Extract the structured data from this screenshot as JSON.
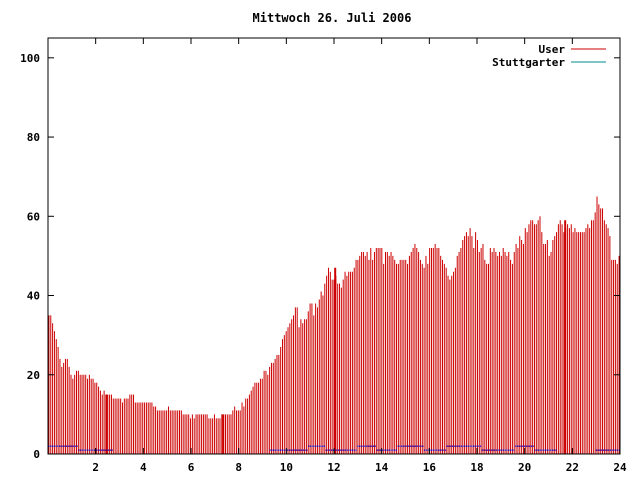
{
  "chart_data": {
    "type": "bar",
    "title": "Mittwoch 26. Juli 2006",
    "xlabel": "",
    "ylabel": "",
    "xlim": [
      0,
      24
    ],
    "ylim": [
      0,
      105
    ],
    "x_ticks": [
      "2",
      "4",
      "6",
      "8",
      "10",
      "12",
      "14",
      "16",
      "18",
      "20",
      "22",
      "24"
    ],
    "y_ticks": [
      "0",
      "20",
      "40",
      "60",
      "80",
      "100"
    ],
    "legend_position": "top-right",
    "grid": false,
    "series": [
      {
        "name": "User",
        "color": "#cc0000",
        "values": [
          35,
          35,
          33,
          31,
          29,
          27,
          24,
          22,
          23,
          24,
          24,
          22,
          20,
          19,
          20,
          21,
          21,
          20,
          20,
          20,
          20,
          19,
          20,
          19,
          19,
          18,
          18,
          17,
          16,
          15,
          16,
          15,
          15,
          15,
          15,
          14,
          14,
          14,
          14,
          14,
          13,
          14,
          14,
          14,
          15,
          15,
          15,
          13,
          13,
          13,
          13,
          13,
          13,
          13,
          13,
          13,
          13,
          12,
          12,
          11,
          11,
          11,
          11,
          11,
          11,
          12,
          11,
          11,
          11,
          11,
          11,
          11,
          11,
          10,
          10,
          10,
          10,
          9,
          10,
          9,
          10,
          10,
          10,
          10,
          10,
          10,
          10,
          9,
          9,
          9,
          10,
          9,
          9,
          9,
          10,
          10,
          10,
          10,
          10,
          10,
          11,
          12,
          11,
          11,
          11,
          13,
          12,
          14,
          14,
          15,
          16,
          17,
          18,
          18,
          18,
          19,
          19,
          21,
          21,
          20,
          22,
          23,
          23,
          24,
          25,
          25,
          27,
          29,
          30,
          31,
          32,
          33,
          34,
          35,
          37,
          37,
          32,
          34,
          33,
          34,
          34,
          36,
          38,
          38,
          35,
          38,
          37,
          39,
          41,
          40,
          43,
          45,
          47,
          46,
          44,
          44,
          45,
          43,
          43,
          42,
          44,
          46,
          45,
          46,
          46,
          46,
          47,
          49,
          49,
          50,
          51,
          51,
          50,
          51,
          49,
          52,
          49,
          51,
          52,
          52,
          52,
          52,
          48,
          51,
          51,
          50,
          51,
          50,
          49,
          48,
          48,
          49,
          49,
          49,
          49,
          48,
          50,
          51,
          52,
          53,
          52,
          51,
          49,
          48,
          47,
          50,
          48,
          52,
          52,
          52,
          53,
          52,
          52,
          50,
          49,
          48,
          47,
          45,
          44,
          45,
          46,
          47,
          50,
          51,
          52,
          54,
          55,
          56,
          55,
          57,
          55,
          52,
          56,
          54,
          51,
          52,
          53,
          49,
          48,
          48,
          52,
          51,
          52,
          51,
          50,
          51,
          50,
          52,
          51,
          50,
          51,
          49,
          48,
          51,
          53,
          52,
          55,
          54,
          53,
          57,
          56,
          58,
          59,
          59,
          58,
          58,
          59,
          60,
          56,
          53,
          53,
          54,
          50,
          51,
          54,
          55,
          56,
          58,
          59,
          58,
          56,
          57,
          58,
          57,
          58,
          56,
          57,
          56,
          56,
          56,
          56,
          56,
          57,
          58,
          57,
          59,
          59,
          61,
          65,
          63,
          62,
          62,
          59,
          58,
          57,
          55,
          49,
          49,
          49,
          48,
          50
        ],
        "highlight_values": [
          {
            "x": 2.45,
            "value": 15
          },
          {
            "x": 7.35,
            "value": 10
          },
          {
            "x": 12.05,
            "value": 47
          },
          {
            "x": 21.7,
            "value": 59
          }
        ]
      },
      {
        "name": "Stuttgarter",
        "color": "#0000cc",
        "line_color": "#008b8b",
        "values": [
          2,
          2,
          2,
          2,
          2,
          2,
          2,
          2,
          2,
          2,
          2,
          2,
          2,
          2,
          2,
          2,
          2,
          1,
          1,
          1,
          1,
          1,
          1,
          1,
          1,
          1,
          1,
          1,
          1,
          1,
          1,
          1,
          1,
          1,
          1,
          1,
          1,
          0,
          0,
          0,
          0,
          0,
          0,
          0,
          0,
          0,
          0,
          0,
          0,
          0,
          0,
          0,
          0,
          0,
          0,
          0,
          0,
          0,
          0,
          0,
          0,
          0,
          0,
          0,
          0,
          0,
          0,
          0,
          0,
          0,
          0,
          0,
          0,
          0,
          0,
          0,
          0,
          0,
          0,
          0,
          0,
          0,
          0,
          0,
          0,
          0,
          0,
          0,
          0,
          0,
          0,
          0,
          0,
          0,
          0,
          0,
          0,
          0,
          0,
          0,
          0,
          0,
          0,
          0,
          0,
          0,
          0,
          0,
          0,
          0,
          0,
          0,
          0,
          0,
          0,
          0,
          0,
          0,
          0,
          0,
          0,
          0,
          0,
          0,
          0,
          0,
          1,
          1,
          1,
          1,
          1,
          1,
          1,
          1,
          1,
          1,
          1,
          1,
          1,
          1,
          1,
          1,
          1,
          1,
          1,
          1,
          1,
          1,
          2,
          2,
          2,
          2,
          2,
          2,
          2,
          2,
          2,
          2,
          1,
          1,
          1,
          1,
          1,
          1,
          1,
          1,
          1,
          1,
          1,
          1,
          1,
          1,
          1,
          1,
          1,
          1,
          2,
          2,
          2,
          2,
          2,
          2,
          2,
          2,
          2,
          2,
          2,
          1,
          1,
          1,
          1,
          1,
          1,
          1,
          1,
          1,
          1,
          1,
          1,
          2,
          2,
          2,
          2,
          2,
          2,
          2,
          2,
          2,
          2,
          2,
          2,
          2,
          2,
          2,
          1,
          1,
          1,
          1,
          1,
          1,
          1,
          1,
          1,
          1,
          1,
          1,
          1,
          2,
          2,
          2,
          2,
          2,
          2,
          2,
          2,
          2,
          2,
          2,
          2,
          2,
          2,
          2,
          2,
          2,
          2,
          2,
          2,
          1,
          1,
          1,
          1,
          1,
          1,
          1,
          1,
          1,
          1,
          1,
          1,
          1,
          1,
          1,
          1,
          1,
          1,
          1,
          2,
          2,
          2,
          2,
          2,
          2,
          2,
          2,
          2,
          2,
          2,
          1,
          1,
          1,
          1,
          1,
          1,
          1,
          1,
          1,
          1,
          1,
          1,
          1,
          0,
          0,
          0,
          0,
          0,
          0,
          0,
          0,
          0,
          0,
          0,
          0,
          0,
          0,
          0,
          0,
          0,
          0,
          0,
          0,
          0,
          0,
          1,
          1,
          1,
          1,
          1,
          1,
          1,
          1,
          1,
          1,
          1,
          1,
          1,
          1
        ]
      }
    ]
  }
}
